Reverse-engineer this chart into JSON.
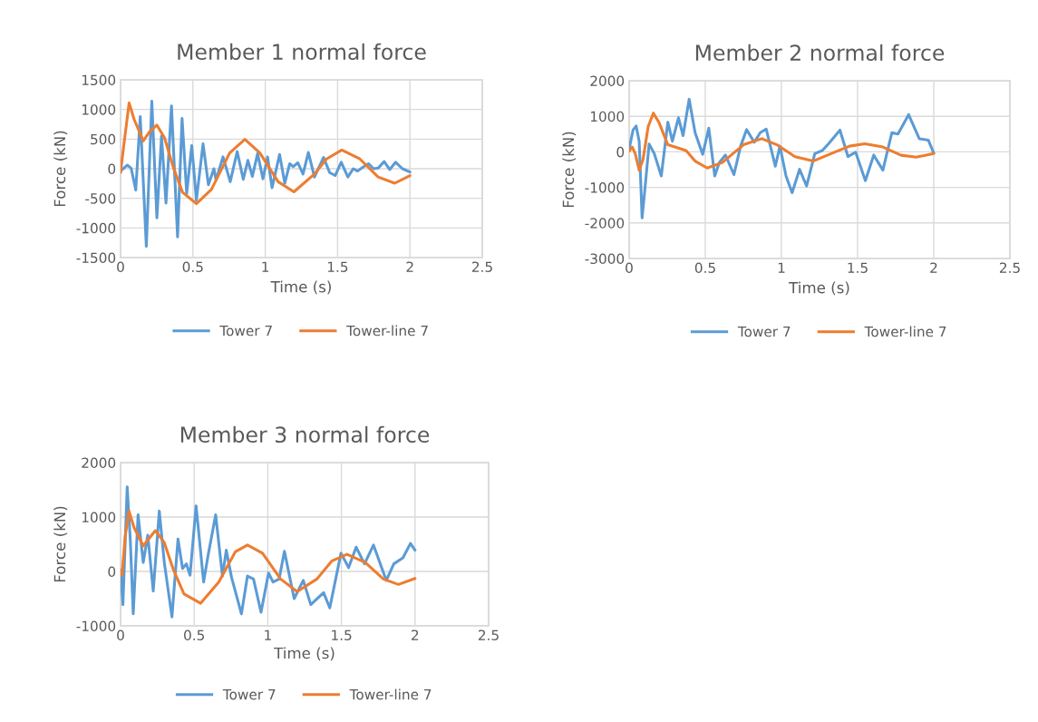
{
  "chart_data": [
    {
      "type": "line",
      "title": "Member 1 normal force",
      "xlabel": "Time (s)",
      "ylabel": "Force (kN)",
      "xlim": [
        0,
        2.5
      ],
      "xticks": [
        0,
        0.5,
        1,
        1.5,
        2,
        2.5
      ],
      "ylim": [
        -1500,
        1500
      ],
      "yticks": [
        -1500,
        -1000,
        -500,
        0,
        500,
        1000,
        1500
      ],
      "grid": true,
      "legend": "bottom",
      "line_style": "solid",
      "marker": "none",
      "series": [
        {
          "name": "Tower 7",
          "color": "#5b9bd5",
          "x": [
            0,
            0.046,
            0.073,
            0.105,
            0.136,
            0.178,
            0.216,
            0.251,
            0.283,
            0.314,
            0.352,
            0.394,
            0.425,
            0.457,
            0.492,
            0.524,
            0.57,
            0.607,
            0.645,
            0.66,
            0.708,
            0.758,
            0.806,
            0.848,
            0.88,
            0.911,
            0.947,
            0.984,
            1.016,
            1.047,
            1.099,
            1.135,
            1.169,
            1.194,
            1.225,
            1.261,
            1.298,
            1.34,
            1.403,
            1.445,
            1.483,
            1.525,
            1.571,
            1.608,
            1.638,
            1.671,
            1.713,
            1.749,
            1.78,
            1.822,
            1.86,
            1.901,
            1.948,
            2.0
          ],
          "values": [
            -40,
            60,
            10,
            -360,
            880,
            -1310,
            1140,
            -830,
            550,
            -580,
            1060,
            -1150,
            850,
            -420,
            390,
            -530,
            420,
            -270,
            0,
            -190,
            200,
            -220,
            290,
            -180,
            140,
            -130,
            255,
            -170,
            200,
            -320,
            240,
            -245,
            85,
            35,
            100,
            -90,
            275,
            -140,
            190,
            -65,
            -115,
            110,
            -140,
            0,
            -40,
            20,
            85,
            0,
            10,
            120,
            -15,
            110,
            0,
            -55
          ]
        },
        {
          "name": "Tower-line 7",
          "color": "#ed7d31",
          "x": [
            0,
            0.021,
            0.059,
            0.094,
            0.157,
            0.199,
            0.251,
            0.304,
            0.366,
            0.429,
            0.524,
            0.628,
            0.754,
            0.859,
            0.963,
            1.089,
            1.198,
            1.34,
            1.424,
            1.529,
            1.654,
            1.78,
            1.895,
            2.0
          ],
          "values": [
            -65,
            370,
            1110,
            830,
            470,
            620,
            735,
            520,
            10,
            -400,
            -590,
            -350,
            265,
            495,
            265,
            -220,
            -390,
            -90,
            165,
            315,
            165,
            -140,
            -245,
            -115
          ]
        }
      ]
    },
    {
      "type": "line",
      "title": "Member 2 normal force",
      "xlabel": "Time (s)",
      "ylabel": "Force (kN)",
      "xlim": [
        0,
        2.5
      ],
      "xticks": [
        0,
        0.5,
        1,
        1.5,
        2,
        2.5
      ],
      "ylim": [
        -3000,
        2000
      ],
      "yticks": [
        -3000,
        -2000,
        -1000,
        0,
        1000,
        2000
      ],
      "grid": true,
      "legend": "bottom",
      "line_style": "solid",
      "marker": "none",
      "series": [
        {
          "name": "Tower 7",
          "color": "#5b9bd5",
          "x": [
            0,
            0.026,
            0.046,
            0.066,
            0.085,
            0.105,
            0.131,
            0.165,
            0.211,
            0.254,
            0.284,
            0.324,
            0.354,
            0.394,
            0.433,
            0.483,
            0.523,
            0.562,
            0.592,
            0.632,
            0.688,
            0.732,
            0.771,
            0.821,
            0.861,
            0.9,
            0.96,
            0.99,
            1.03,
            1.07,
            1.119,
            1.165,
            1.219,
            1.268,
            1.308,
            1.384,
            1.437,
            1.487,
            1.551,
            1.606,
            1.666,
            1.725,
            1.765,
            1.835,
            1.905,
            1.964,
            2.0
          ],
          "values": [
            80,
            620,
            725,
            290,
            -1860,
            -980,
            220,
            -50,
            -680,
            835,
            300,
            960,
            455,
            1480,
            540,
            -70,
            665,
            -680,
            -300,
            -90,
            -640,
            160,
            625,
            270,
            540,
            640,
            -405,
            160,
            -680,
            -1150,
            -490,
            -960,
            -50,
            35,
            220,
            610,
            -135,
            -10,
            -810,
            -90,
            -515,
            540,
            500,
            1045,
            370,
            330,
            -35
          ]
        },
        {
          "name": "Tower-line 7",
          "color": "#ed7d31",
          "x": [
            0,
            0.02,
            0.04,
            0.066,
            0.091,
            0.125,
            0.159,
            0.195,
            0.254,
            0.314,
            0.374,
            0.433,
            0.513,
            0.612,
            0.751,
            0.871,
            0.97,
            1.089,
            1.208,
            1.348,
            1.447,
            1.547,
            1.666,
            1.785,
            1.885,
            2.0
          ],
          "values": [
            20,
            135,
            -50,
            -515,
            -220,
            710,
            1090,
            835,
            200,
            120,
            35,
            -260,
            -455,
            -300,
            200,
            370,
            200,
            -135,
            -260,
            -10,
            160,
            230,
            135,
            -95,
            -150,
            -50
          ]
        }
      ]
    },
    {
      "type": "line",
      "title": "Member 3 normal force",
      "xlabel": "Time (s)",
      "ylabel": "Force (kN)",
      "xlim": [
        0,
        2.5
      ],
      "xticks": [
        0,
        0.5,
        1,
        1.5,
        2,
        2.5
      ],
      "ylim": [
        -1000,
        2000
      ],
      "yticks": [
        -1000,
        0,
        1000,
        2000
      ],
      "grid": true,
      "legend": "bottom",
      "line_style": "solid",
      "marker": "none",
      "series": [
        {
          "name": "Tower 7",
          "color": "#5b9bd5",
          "x": [
            0,
            0.016,
            0.045,
            0.066,
            0.086,
            0.119,
            0.154,
            0.185,
            0.222,
            0.263,
            0.297,
            0.349,
            0.39,
            0.421,
            0.447,
            0.472,
            0.513,
            0.564,
            0.595,
            0.646,
            0.692,
            0.718,
            0.754,
            0.821,
            0.862,
            0.903,
            0.954,
            1.005,
            1.036,
            1.077,
            1.113,
            1.179,
            1.241,
            1.292,
            1.379,
            1.421,
            1.497,
            1.549,
            1.6,
            1.657,
            1.718,
            1.805,
            1.856,
            1.918,
            1.969,
            2.0
          ],
          "values": [
            30,
            -610,
            1555,
            580,
            -780,
            1040,
            165,
            665,
            -360,
            1110,
            165,
            -835,
            595,
            55,
            140,
            -70,
            1205,
            -195,
            305,
            1040,
            -85,
            390,
            -110,
            -780,
            -85,
            -140,
            -750,
            -30,
            -195,
            -140,
            370,
            -500,
            -165,
            -610,
            -390,
            -670,
            335,
            70,
            445,
            140,
            485,
            -165,
            140,
            250,
            515,
            390
          ]
        },
        {
          "name": "Tower-line 7",
          "color": "#ed7d31",
          "x": [
            0,
            0.01,
            0.031,
            0.057,
            0.092,
            0.154,
            0.236,
            0.297,
            0.359,
            0.431,
            0.544,
            0.667,
            0.779,
            0.862,
            0.964,
            1.087,
            1.2,
            1.333,
            1.436,
            1.538,
            1.662,
            1.785,
            1.887,
            2.0
          ],
          "values": [
            0,
            -70,
            640,
            1110,
            805,
            470,
            750,
            530,
            30,
            -415,
            -585,
            -195,
            360,
            485,
            335,
            -140,
            -370,
            -140,
            195,
            315,
            165,
            -140,
            -240,
            -130
          ]
        }
      ]
    }
  ]
}
